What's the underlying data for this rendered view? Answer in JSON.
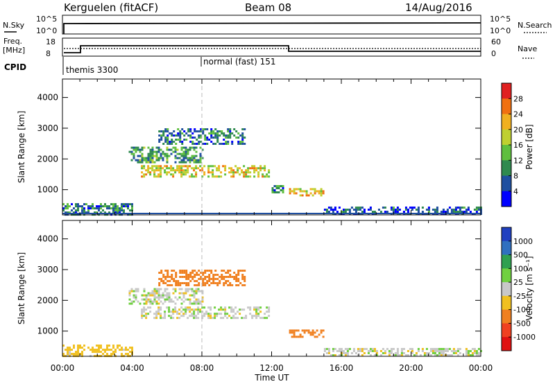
{
  "header": {
    "station": "Kerguelen (fitACF)",
    "beam": "Beam 08",
    "date": "14/Aug/2016"
  },
  "top_panels": {
    "nsky_label": "N.Sky",
    "nsky_ticks": [
      "10^5",
      "10^0"
    ],
    "nsearch_label": "N.Search",
    "nsearch_ticks": [
      "10^5",
      "10^0"
    ],
    "freq_label": "Freq.",
    "freq_unit": "[MHz]",
    "freq_ticks": [
      "18",
      "8"
    ],
    "nave_label": "Nave",
    "nave_ticks": [
      "60",
      "0"
    ],
    "cpid_label": "CPID",
    "cpid_modes": [
      {
        "name": "themis 3300",
        "start_hour": 0
      },
      {
        "name": "normal (fast) 151",
        "start_hour": 8
      }
    ]
  },
  "chart_data": [
    {
      "type": "heatmap",
      "name": "power",
      "ylabel": "Slant Range [km]",
      "ylim": [
        180,
        4600
      ],
      "yticks": [
        1000,
        2000,
        3000,
        4000
      ],
      "xlim": [
        0,
        24
      ],
      "colorbar_label": "Power [dB]",
      "colorbar_ticks": [
        "28",
        "24",
        "20",
        "16",
        "12",
        "8",
        "4"
      ],
      "colorbar_range": [
        0,
        30
      ],
      "echo_regions": [
        {
          "x": [
            0.0,
            4.0
          ],
          "y": [
            180,
            560
          ],
          "value_db": 8
        },
        {
          "x": [
            3.8,
            8.0
          ],
          "y": [
            1900,
            2400
          ],
          "value_db": 10
        },
        {
          "x": [
            4.5,
            11.8
          ],
          "y": [
            1400,
            1800
          ],
          "value_db": 18
        },
        {
          "x": [
            5.5,
            10.5
          ],
          "y": [
            2500,
            3000
          ],
          "value_db": 8
        },
        {
          "x": [
            12.0,
            12.6
          ],
          "y": [
            900,
            1150
          ],
          "value_db": 9
        },
        {
          "x": [
            13.0,
            15.0
          ],
          "y": [
            820,
            1050
          ],
          "value_db": 20
        },
        {
          "x": [
            15.0,
            24.0
          ],
          "y": [
            180,
            450
          ],
          "value_db": 6
        }
      ]
    },
    {
      "type": "heatmap",
      "name": "velocity",
      "ylabel": "Slant Range [km]",
      "xlabel": "Time UT",
      "ylim": [
        180,
        4600
      ],
      "yticks": [
        1000,
        2000,
        3000,
        4000
      ],
      "xlim": [
        0,
        24
      ],
      "xticks": [
        "00:00",
        "04:00",
        "08:00",
        "12:00",
        "16:00",
        "20:00",
        "00:00"
      ],
      "colorbar_label": "Velocity [m s⁻¹]",
      "colorbar_ticks": [
        "1000",
        "500",
        "100",
        "25",
        "-25",
        "-100",
        "-500",
        "-1000"
      ],
      "echo_regions": [
        {
          "x": [
            0.0,
            4.0
          ],
          "y": [
            180,
            560
          ],
          "value_ms": -60
        },
        {
          "x": [
            3.8,
            8.0
          ],
          "y": [
            1900,
            2400
          ],
          "value_ms": 0
        },
        {
          "x": [
            4.5,
            11.8
          ],
          "y": [
            1400,
            1800
          ],
          "value_ms": 0
        },
        {
          "x": [
            5.5,
            10.5
          ],
          "y": [
            2500,
            3000
          ],
          "value_ms": -150
        },
        {
          "x": [
            13.0,
            15.0
          ],
          "y": [
            820,
            1050
          ],
          "value_ms": -300
        },
        {
          "x": [
            15.0,
            24.0
          ],
          "y": [
            180,
            450
          ],
          "value_ms": 0
        }
      ]
    }
  ],
  "colors": {
    "power_scale": [
      "#0000ff",
      "#1f4fa0",
      "#2f8a4f",
      "#5fbf3f",
      "#bfd030",
      "#f0b020",
      "#f07010",
      "#e02020"
    ],
    "velocity_scale": [
      "#2040c0",
      "#3070c0",
      "#30a050",
      "#70d040",
      "#c8c8c8",
      "#f0c020",
      "#f08020",
      "#f04020",
      "#e01010"
    ]
  }
}
